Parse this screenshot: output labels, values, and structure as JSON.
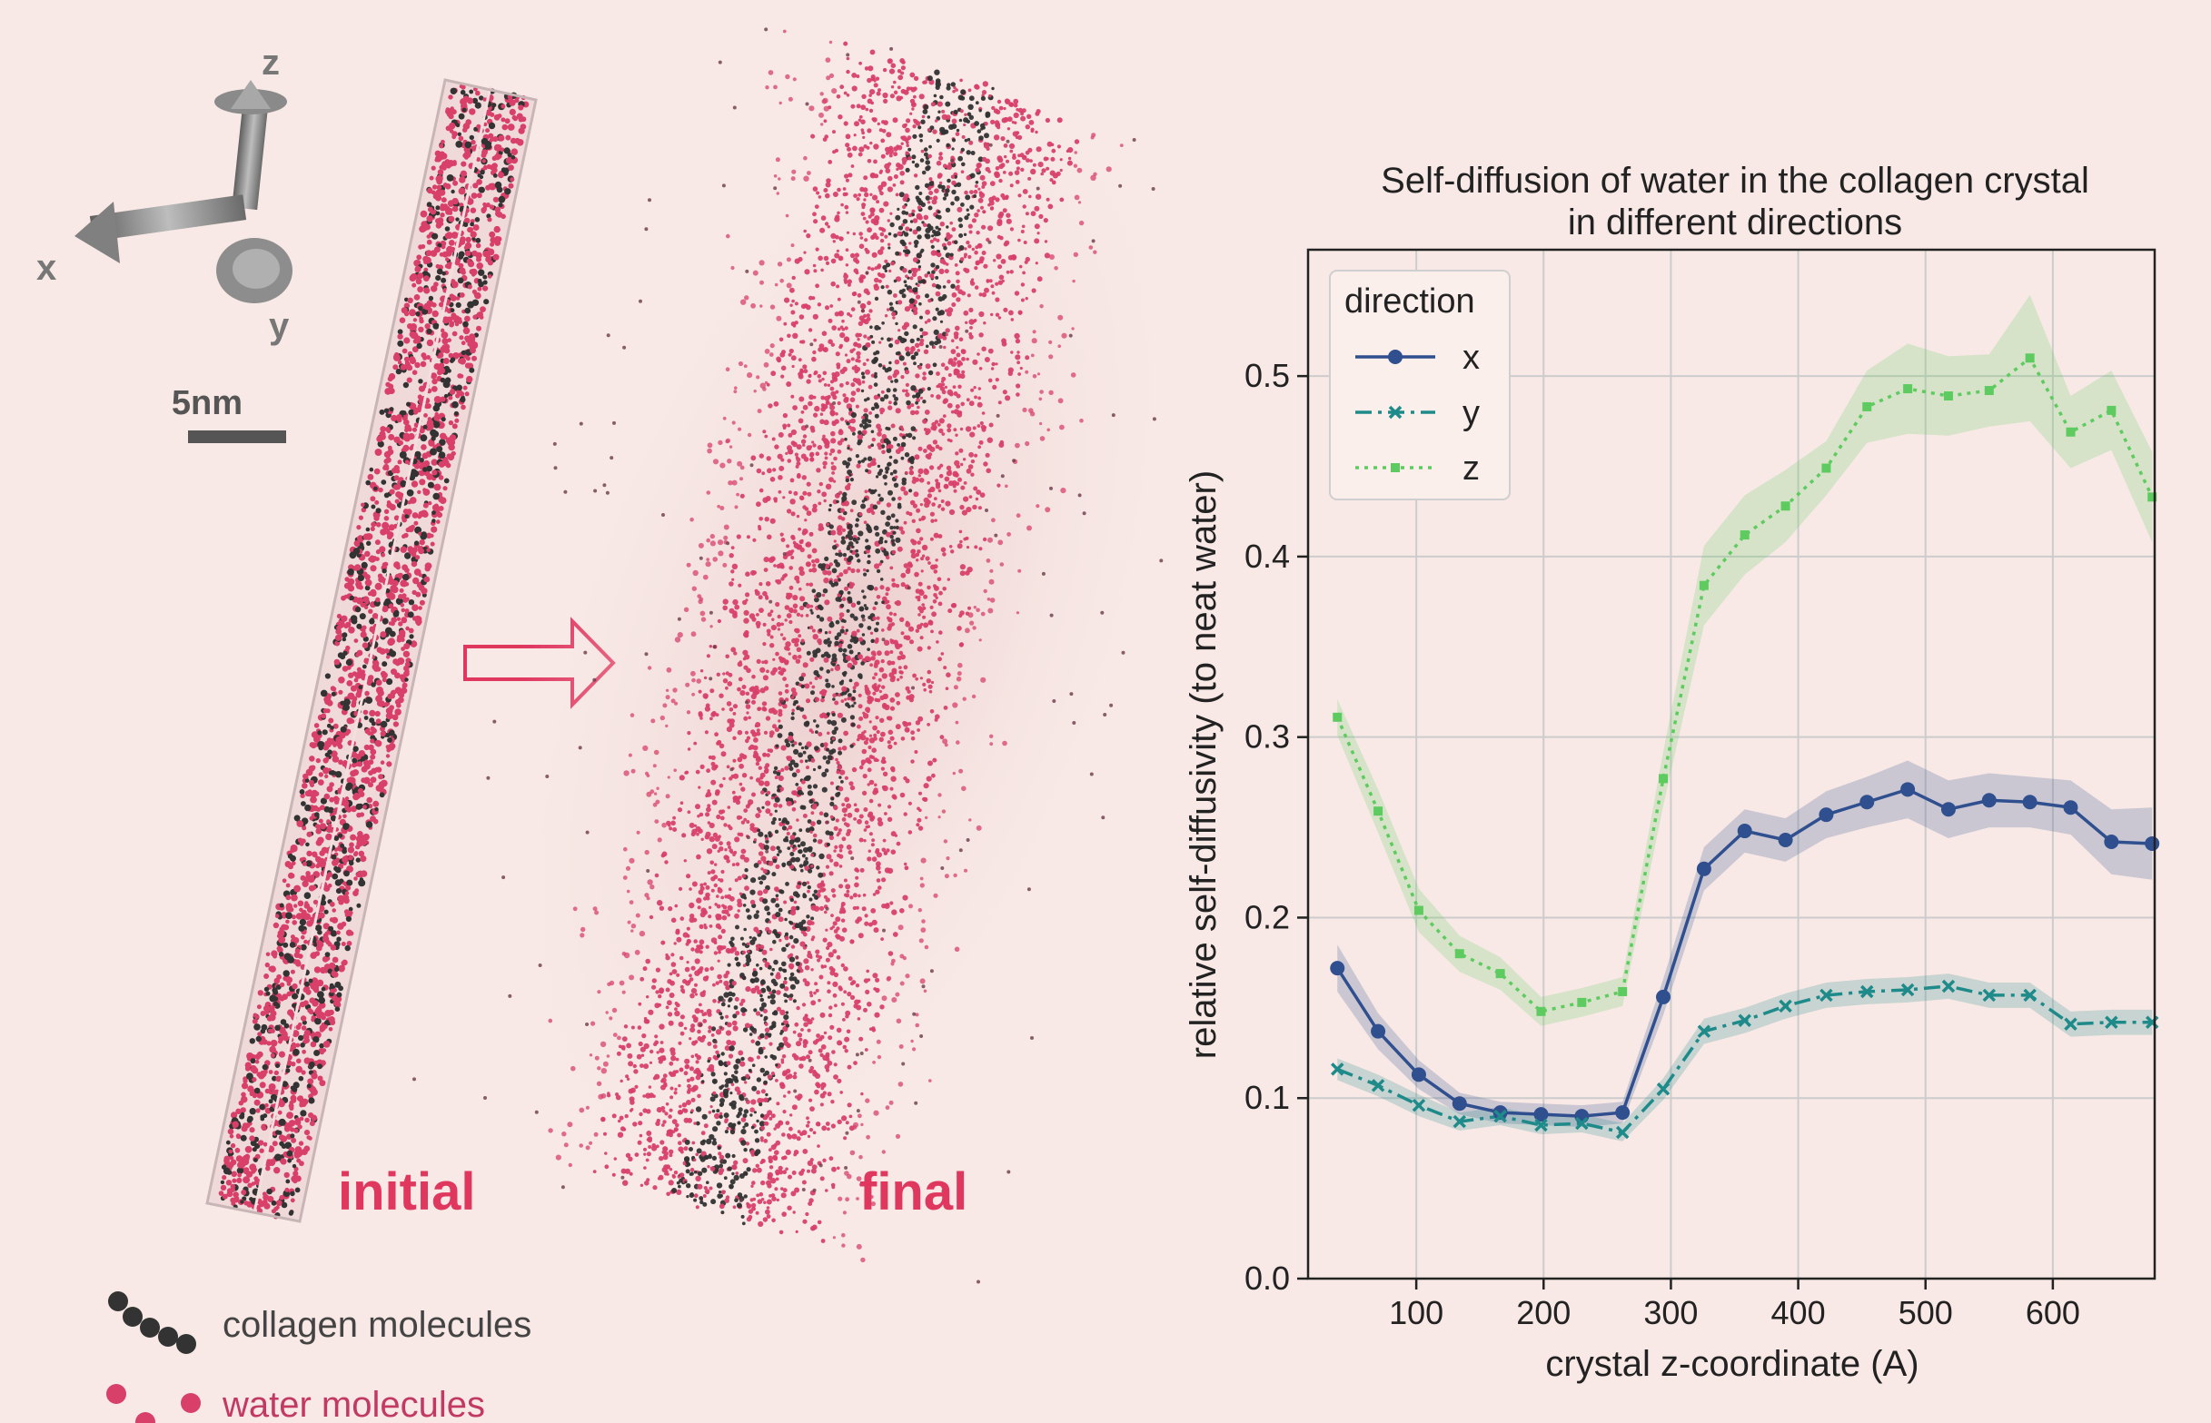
{
  "figure": {
    "axes_gizmo": {
      "x_label": "x",
      "y_label": "y",
      "z_label": "z"
    },
    "scale_bar_label": "5nm",
    "panel_initial_label": "initial",
    "panel_final_label": "final",
    "legend_collagen": "collagen molecules",
    "legend_water": "water molecules",
    "colors": {
      "water": "#d8406a",
      "collagen": "#333333",
      "arrow": "#e0375f",
      "background": "#f8e9e6"
    }
  },
  "chart_data": {
    "type": "line",
    "title_line1": "Self-diffusion of water in the collagen crystal",
    "title_line2": "in different directions",
    "xlabel": "crystal z-coordinate (A)",
    "ylabel": "relative self-diffusivity (to neat water)",
    "xlim": [
      15,
      680
    ],
    "ylim": [
      0,
      0.57
    ],
    "xticks": [
      100,
      200,
      300,
      400,
      500,
      600
    ],
    "yticks": [
      0.0,
      0.1,
      0.2,
      0.3,
      0.4,
      0.5
    ],
    "ytick_labels": [
      "0.0",
      "0.1",
      "0.2",
      "0.3",
      "0.4",
      "0.5"
    ],
    "grid": true,
    "legend_title": "direction",
    "legend_position": "top-left",
    "x": [
      38,
      70,
      102,
      134,
      166,
      198,
      230,
      262,
      294,
      326,
      358,
      390,
      422,
      454,
      486,
      518,
      550,
      582,
      614,
      646,
      678
    ],
    "series": [
      {
        "name": "x",
        "color": "#2f4f8f",
        "marker": "circle",
        "dash": "solid",
        "values": [
          0.172,
          0.137,
          0.113,
          0.097,
          0.092,
          0.091,
          0.09,
          0.092,
          0.156,
          0.227,
          0.248,
          0.243,
          0.257,
          0.264,
          0.271,
          0.26,
          0.265,
          0.264,
          0.261,
          0.242,
          0.241
        ],
        "band": [
          0.013,
          0.01,
          0.008,
          0.006,
          0.006,
          0.006,
          0.006,
          0.006,
          0.01,
          0.012,
          0.012,
          0.012,
          0.013,
          0.014,
          0.016,
          0.016,
          0.015,
          0.014,
          0.015,
          0.018,
          0.02
        ]
      },
      {
        "name": "y",
        "color": "#1f8a8a",
        "marker": "x",
        "dash": "dashdot",
        "values": [
          0.116,
          0.107,
          0.096,
          0.087,
          0.09,
          0.085,
          0.086,
          0.081,
          0.105,
          0.137,
          0.143,
          0.151,
          0.157,
          0.159,
          0.16,
          0.162,
          0.157,
          0.157,
          0.141,
          0.142,
          0.142
        ],
        "band": [
          0.006,
          0.006,
          0.006,
          0.005,
          0.005,
          0.005,
          0.005,
          0.005,
          0.006,
          0.007,
          0.007,
          0.007,
          0.007,
          0.007,
          0.007,
          0.007,
          0.007,
          0.007,
          0.007,
          0.007,
          0.007
        ]
      },
      {
        "name": "z",
        "color": "#5ecb60",
        "marker": "square",
        "dash": "dotted",
        "values": [
          0.311,
          0.259,
          0.204,
          0.18,
          0.169,
          0.148,
          0.153,
          0.159,
          0.277,
          0.384,
          0.412,
          0.428,
          0.449,
          0.483,
          0.493,
          0.489,
          0.492,
          0.51,
          0.469,
          0.481,
          0.433
        ],
        "band": [
          0.01,
          0.012,
          0.012,
          0.01,
          0.009,
          0.008,
          0.008,
          0.008,
          0.015,
          0.022,
          0.022,
          0.02,
          0.015,
          0.02,
          0.025,
          0.022,
          0.02,
          0.035,
          0.02,
          0.022,
          0.025
        ]
      }
    ]
  },
  "strip": {
    "colors": [
      "#888888",
      "#e05a5a",
      "#7cc444",
      "#2a4bdc",
      "#f09a30"
    ]
  }
}
